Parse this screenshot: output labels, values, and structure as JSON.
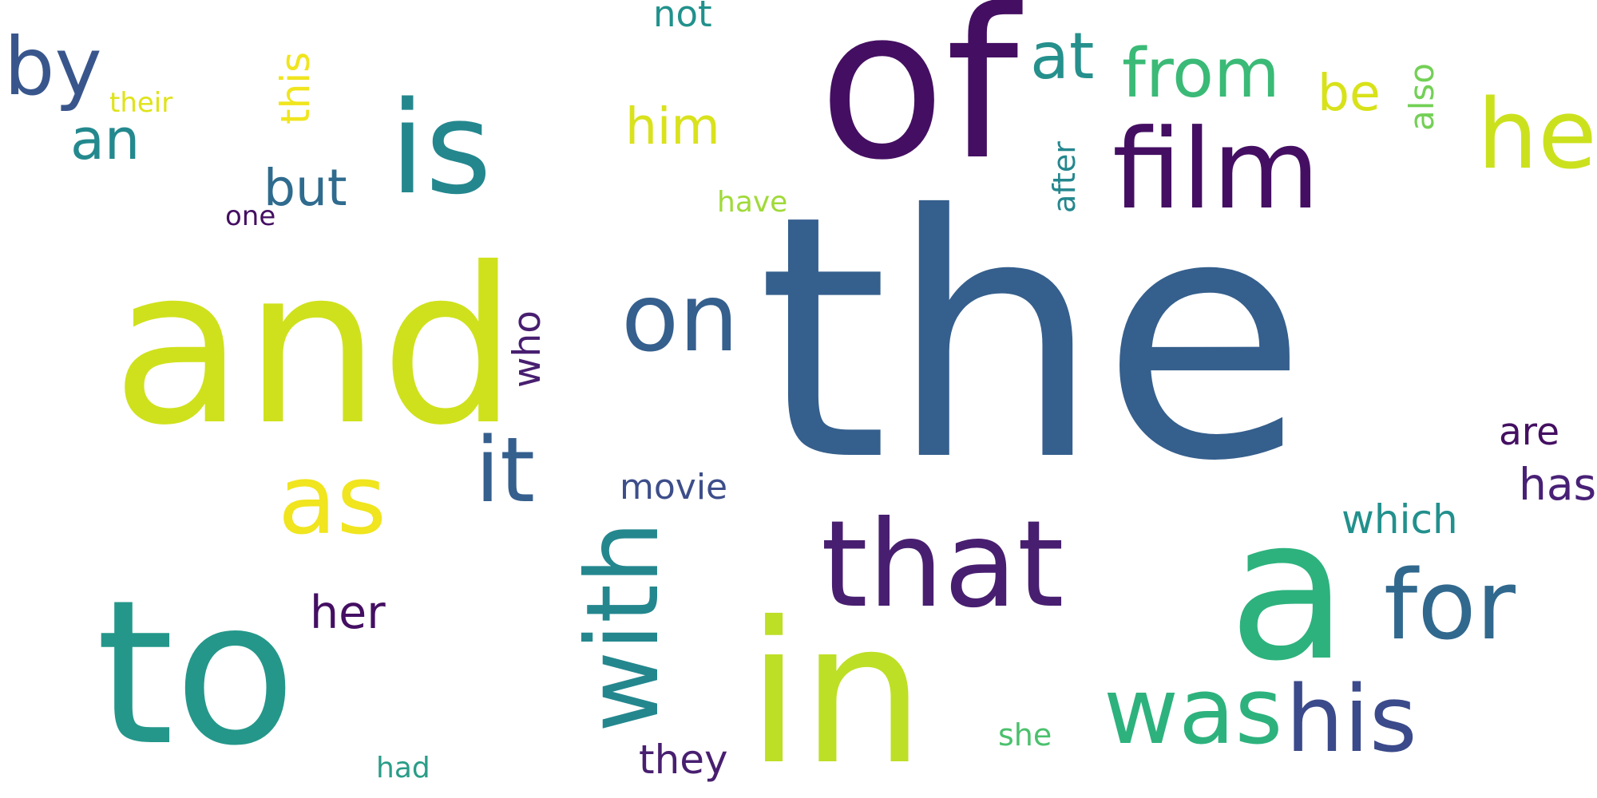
{
  "colors": {
    "background": "#ffffff",
    "dark_purple": "#440f62",
    "purple": "#482476",
    "indigo": "#3b4a8a",
    "blue": "#355f8d",
    "teal": "#24878e",
    "green_teal": "#20928c",
    "green": "#2db27d",
    "light_green": "#6ccd5a",
    "yellow_green": "#b5de2b",
    "yellow": "#d9e21c",
    "bright_yellow": "#f0e51e"
  },
  "words": {
    "the": "the",
    "and": "and",
    "of": "of",
    "to": "to",
    "a": "a",
    "in": "in",
    "is": "is",
    "film": "film",
    "that": "that",
    "with": "with",
    "on": "on",
    "it": "it",
    "as": "as",
    "was": "was",
    "his": "his",
    "for": "for",
    "he": "he",
    "by": "by",
    "from": "from",
    "at": "at",
    "an": "an",
    "but": "but",
    "him": "him",
    "be": "be",
    "this": "this",
    "who": "who",
    "her": "her",
    "which": "which",
    "movie": "movie",
    "has": "has",
    "are": "are",
    "they": "they",
    "not": "not",
    "after": "after",
    "also": "also",
    "their": "their",
    "one": "one",
    "have": "have",
    "she": "she",
    "had": "had"
  }
}
